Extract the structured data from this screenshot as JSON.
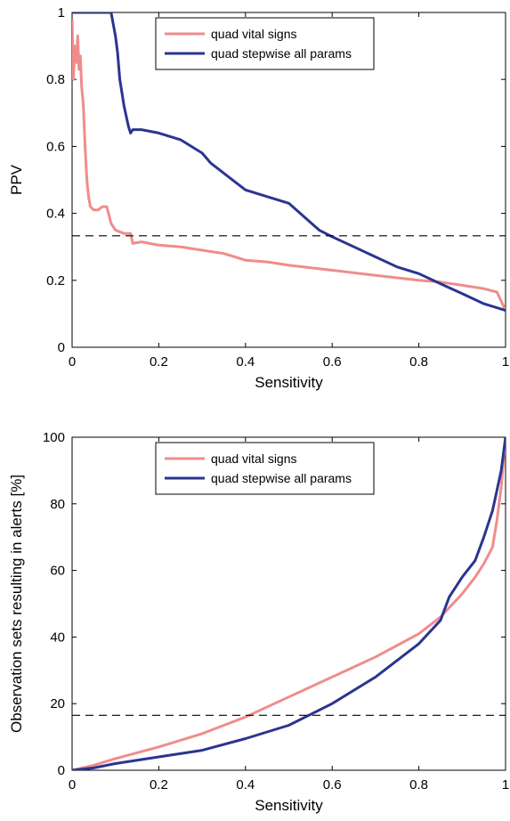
{
  "chart_data": [
    {
      "type": "line",
      "xlabel": "Sensitivity",
      "ylabel": "PPV",
      "xlim": [
        0,
        1
      ],
      "ylim": [
        0,
        1
      ],
      "xticks": [
        "0",
        "0.2",
        "0.4",
        "0.6",
        "0.8",
        "1"
      ],
      "yticks": [
        "0",
        "0.2",
        "0.4",
        "0.6",
        "0.8",
        "1"
      ],
      "legend_position": "top-center",
      "grid": false,
      "reference_line": {
        "y": 0.333,
        "style": "dashed",
        "color": "#000000"
      },
      "series": [
        {
          "name": "quad vital signs",
          "color": "#f08c8c",
          "x": [
            0.0,
            0.003,
            0.006,
            0.01,
            0.013,
            0.016,
            0.019,
            0.022,
            0.026,
            0.03,
            0.034,
            0.038,
            0.042,
            0.05,
            0.06,
            0.07,
            0.08,
            0.09,
            0.1,
            0.12,
            0.135,
            0.14,
            0.16,
            0.2,
            0.25,
            0.3,
            0.35,
            0.4,
            0.45,
            0.5,
            0.6,
            0.7,
            0.8,
            0.85,
            0.9,
            0.95,
            0.98,
            1.0
          ],
          "y": [
            0.98,
            0.8,
            0.9,
            0.85,
            0.93,
            0.83,
            0.87,
            0.78,
            0.72,
            0.6,
            0.5,
            0.45,
            0.42,
            0.41,
            0.41,
            0.42,
            0.42,
            0.37,
            0.35,
            0.34,
            0.34,
            0.31,
            0.315,
            0.305,
            0.3,
            0.29,
            0.28,
            0.26,
            0.255,
            0.245,
            0.23,
            0.215,
            0.2,
            0.195,
            0.185,
            0.175,
            0.165,
            0.11
          ]
        },
        {
          "name": "quad stepwise all params",
          "color": "#2a3590",
          "x": [
            0.0,
            0.09,
            0.1,
            0.105,
            0.11,
            0.12,
            0.13,
            0.135,
            0.14,
            0.16,
            0.2,
            0.25,
            0.3,
            0.32,
            0.4,
            0.5,
            0.57,
            0.6,
            0.65,
            0.7,
            0.75,
            0.8,
            0.85,
            0.9,
            0.95,
            1.0
          ],
          "y": [
            1.0,
            1.0,
            0.93,
            0.88,
            0.8,
            0.72,
            0.66,
            0.64,
            0.65,
            0.65,
            0.64,
            0.62,
            0.58,
            0.55,
            0.47,
            0.43,
            0.35,
            0.33,
            0.3,
            0.27,
            0.24,
            0.22,
            0.19,
            0.16,
            0.13,
            0.11
          ]
        }
      ]
    },
    {
      "type": "line",
      "xlabel": "Sensitivity",
      "ylabel": "Observation sets resulting in alerts [%]",
      "xlim": [
        0,
        1
      ],
      "ylim": [
        0,
        100
      ],
      "xticks": [
        "0",
        "0.2",
        "0.4",
        "0.6",
        "0.8",
        "1"
      ],
      "yticks": [
        "0",
        "20",
        "40",
        "60",
        "80",
        "100"
      ],
      "legend_position": "top-center",
      "grid": false,
      "reference_line": {
        "y": 16.5,
        "style": "dashed",
        "color": "#000000"
      },
      "series": [
        {
          "name": "quad vital signs",
          "color": "#f08c8c",
          "x": [
            0.0,
            0.05,
            0.1,
            0.2,
            0.3,
            0.4,
            0.5,
            0.6,
            0.7,
            0.8,
            0.85,
            0.9,
            0.93,
            0.95,
            0.97,
            0.98,
            0.99,
            1.0
          ],
          "y": [
            0.0,
            1.5,
            3.5,
            7.0,
            11.0,
            16.0,
            22.0,
            28.0,
            34.0,
            41.0,
            46.0,
            53.0,
            58.0,
            62.0,
            67.0,
            75.0,
            85.0,
            100.0
          ]
        },
        {
          "name": "quad stepwise all params",
          "color": "#2a3590",
          "x": [
            0.0,
            0.05,
            0.1,
            0.2,
            0.3,
            0.4,
            0.5,
            0.6,
            0.7,
            0.8,
            0.85,
            0.87,
            0.9,
            0.93,
            0.95,
            0.97,
            0.98,
            0.99,
            1.0
          ],
          "y": [
            0.0,
            0.7,
            2.0,
            4.0,
            6.0,
            9.5,
            13.5,
            20.0,
            28.0,
            38.0,
            45.0,
            52.0,
            58.0,
            63.0,
            70.0,
            78.0,
            84.0,
            90.0,
            100.0
          ]
        }
      ]
    }
  ]
}
